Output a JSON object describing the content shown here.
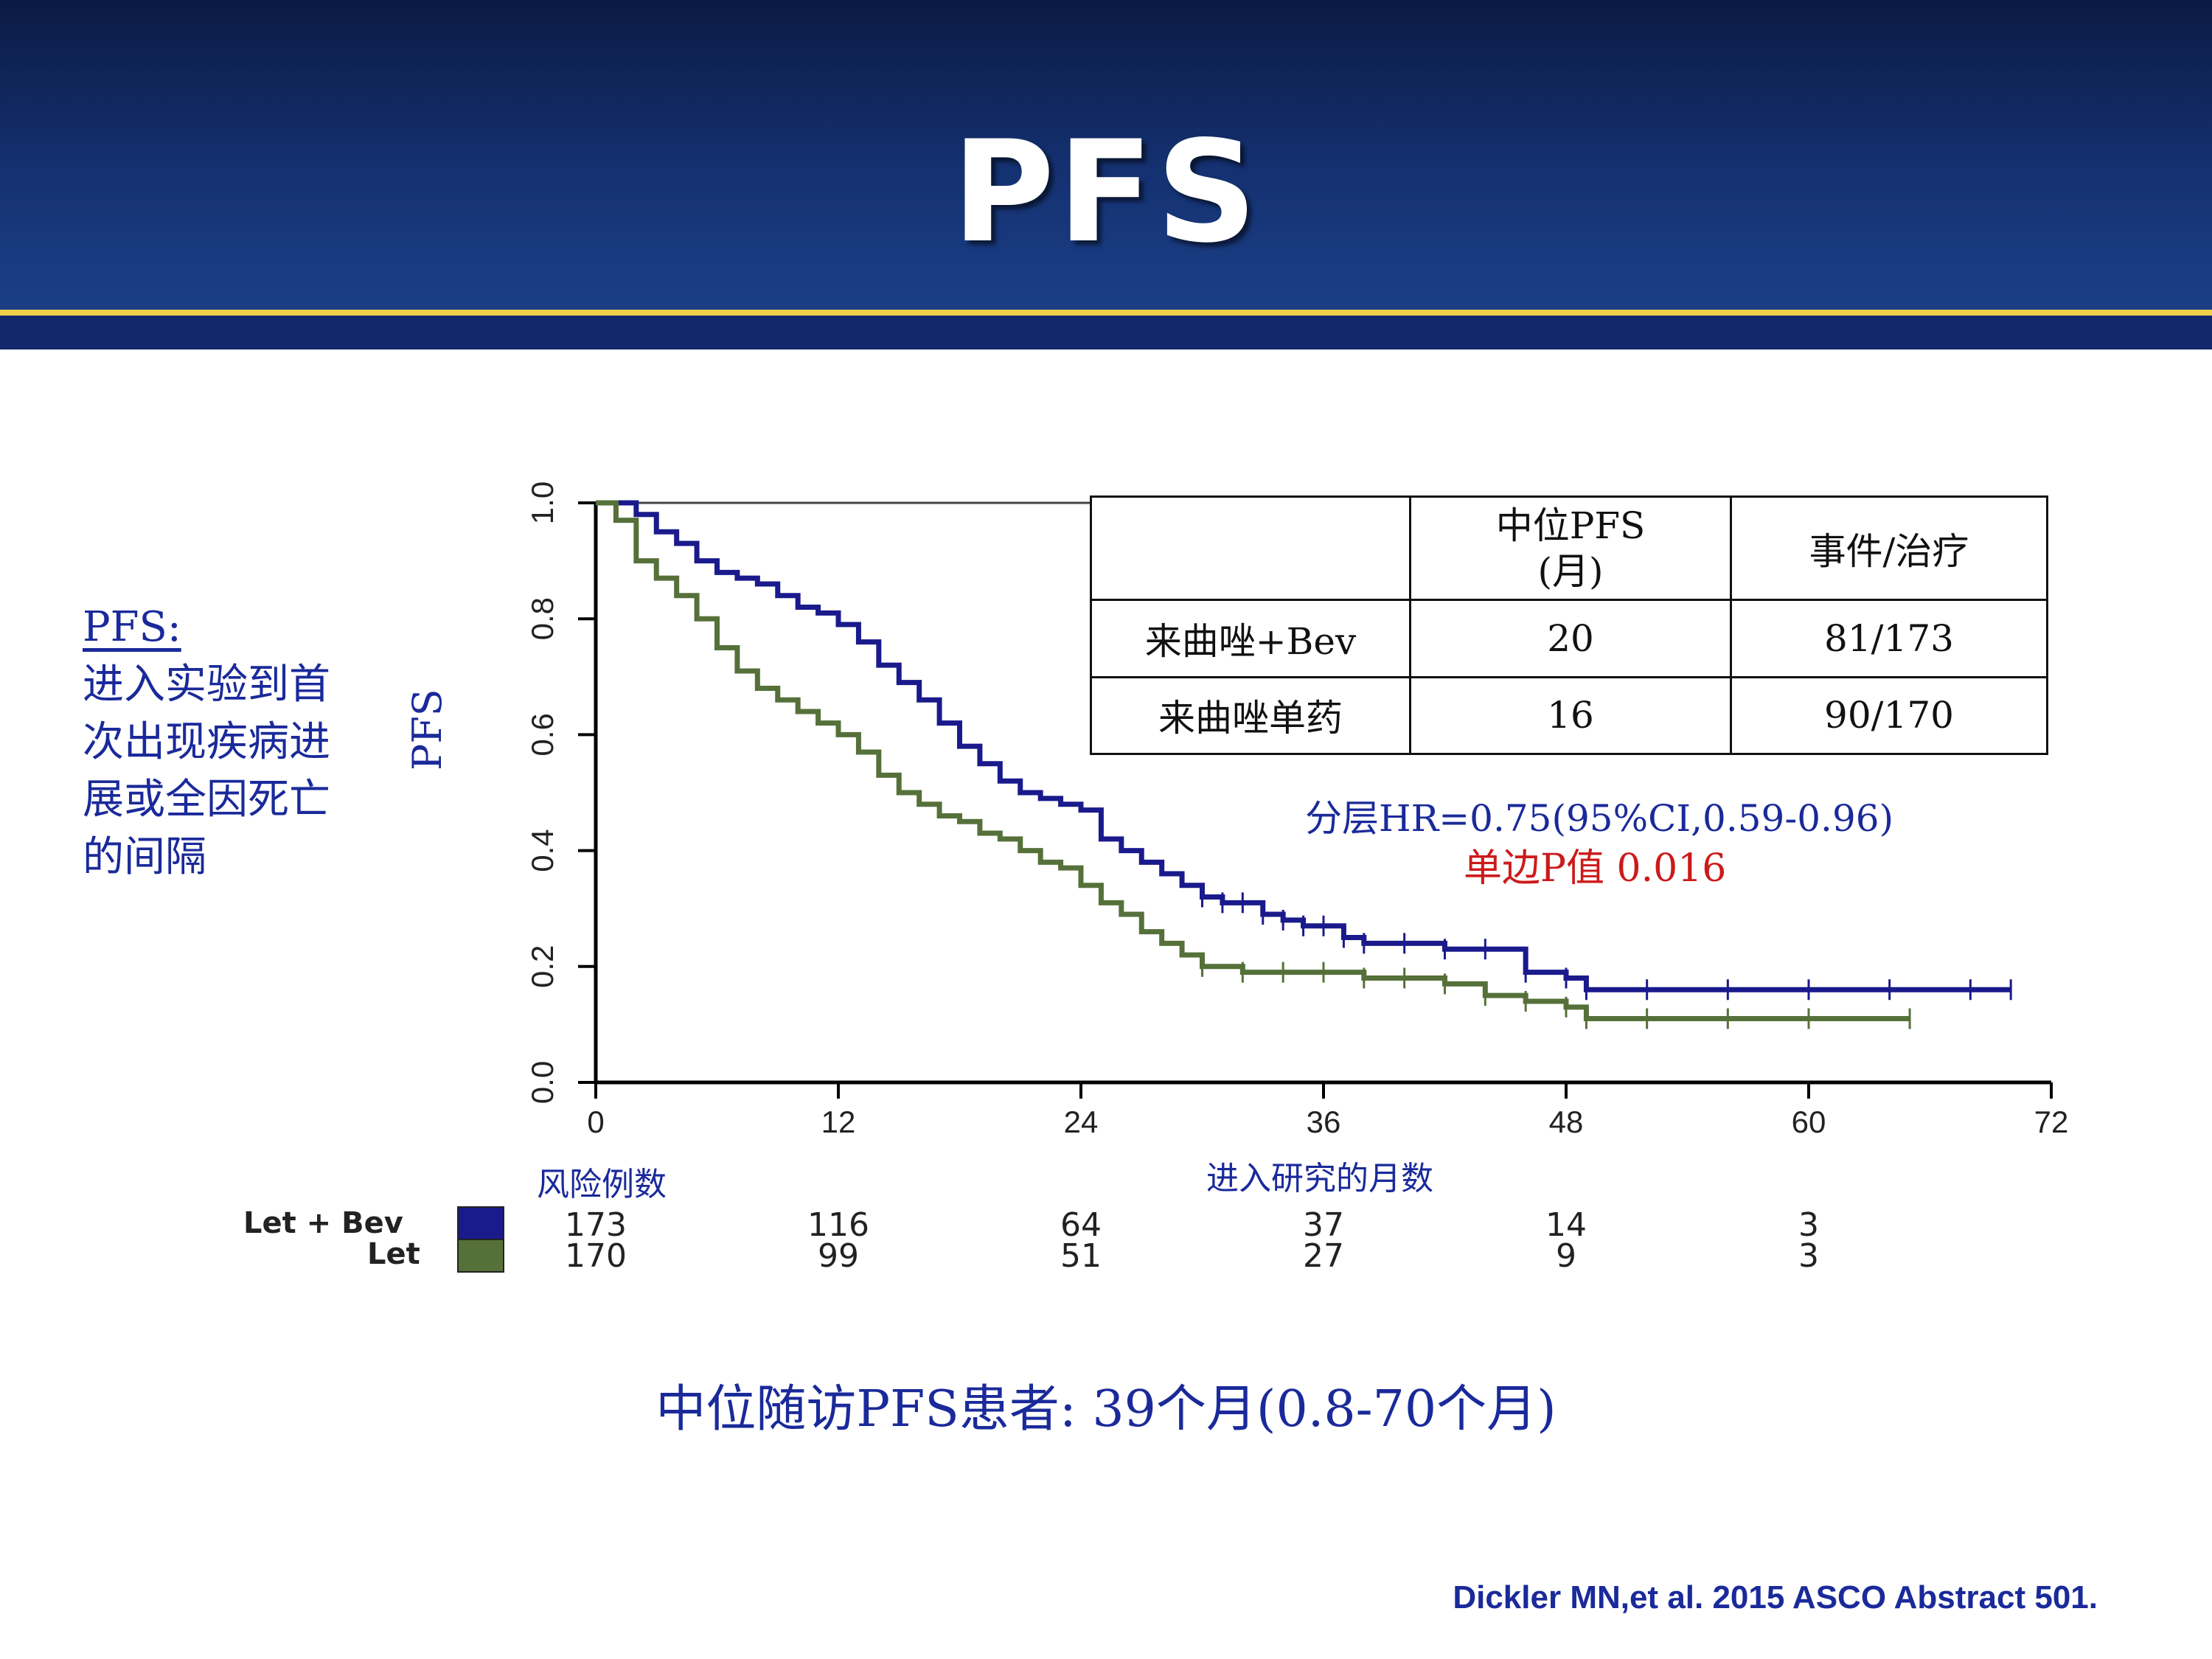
{
  "slide": {
    "title": "PFS",
    "sidebar_head": "PFS:",
    "sidebar_lines": [
      "进入实验到首",
      "次出现疾病进",
      "展或全因死亡",
      "的间隔"
    ],
    "median_followup": "中位随访PFS患者: 39个月(0.8-70个月)",
    "citation": "Dickler MN,et al. 2015 ASCO Abstract 501.",
    "colors": {
      "header": "#143171",
      "accent_line": "#f2d04a",
      "text_blue": "#1a2a9a",
      "p_red": "#cc1a1a"
    }
  },
  "chart_data": {
    "type": "line",
    "subtype": "kaplan-meier",
    "ylabel": "PFS",
    "xlabel": "进入研究的月数",
    "xlim": [
      0,
      72
    ],
    "ylim": [
      0,
      1.0
    ],
    "xticks": [
      0,
      12,
      24,
      36,
      48,
      60,
      72
    ],
    "yticks": [
      0.0,
      0.2,
      0.4,
      0.6,
      0.8,
      1.0
    ],
    "ytick_labels": [
      "0.0",
      "0.2",
      "0.4",
      "0.6",
      "0.8",
      "1.0"
    ],
    "series": [
      {
        "name": "Let + Bev",
        "color": "#1a1a8c",
        "x": [
          0,
          2,
          3,
          4,
          5,
          6,
          7,
          8,
          9,
          10,
          11,
          12,
          13,
          14,
          15,
          16,
          17,
          18,
          19,
          20,
          21,
          22,
          23,
          24,
          25,
          26,
          27,
          28,
          29,
          30,
          31,
          32,
          33,
          34,
          35,
          36,
          37,
          38,
          40,
          42,
          44,
          46,
          48,
          49,
          52,
          56,
          60,
          64,
          68,
          70
        ],
        "y": [
          1.0,
          0.98,
          0.95,
          0.93,
          0.9,
          0.88,
          0.87,
          0.86,
          0.84,
          0.82,
          0.81,
          0.79,
          0.76,
          0.72,
          0.69,
          0.66,
          0.62,
          0.58,
          0.55,
          0.52,
          0.5,
          0.49,
          0.48,
          0.47,
          0.42,
          0.4,
          0.38,
          0.36,
          0.34,
          0.32,
          0.31,
          0.31,
          0.29,
          0.28,
          0.27,
          0.27,
          0.25,
          0.24,
          0.24,
          0.23,
          0.23,
          0.19,
          0.18,
          0.16,
          0.16,
          0.16,
          0.16,
          0.16,
          0.16,
          0.16
        ]
      },
      {
        "name": "Let",
        "color": "#56703a",
        "x": [
          0,
          1,
          2,
          3,
          4,
          5,
          6,
          7,
          8,
          9,
          10,
          11,
          12,
          13,
          14,
          15,
          16,
          17,
          18,
          19,
          20,
          21,
          22,
          23,
          24,
          25,
          26,
          27,
          28,
          29,
          30,
          32,
          34,
          36,
          38,
          40,
          42,
          44,
          46,
          48,
          49,
          52,
          56,
          60,
          65
        ],
        "y": [
          1.0,
          0.97,
          0.9,
          0.87,
          0.84,
          0.8,
          0.75,
          0.71,
          0.68,
          0.66,
          0.64,
          0.62,
          0.6,
          0.57,
          0.53,
          0.5,
          0.48,
          0.46,
          0.45,
          0.43,
          0.42,
          0.4,
          0.38,
          0.37,
          0.34,
          0.31,
          0.29,
          0.26,
          0.24,
          0.22,
          0.2,
          0.19,
          0.19,
          0.19,
          0.18,
          0.18,
          0.17,
          0.15,
          0.14,
          0.13,
          0.11,
          0.11,
          0.11,
          0.11,
          0.11
        ]
      }
    ],
    "summary_table": {
      "header": [
        "",
        "中位PFS\n(月)",
        "事件/治疗"
      ],
      "header_median_line1": "中位PFS",
      "header_median_line2": "(月)",
      "rows": [
        {
          "group": "来曲唑+Bev",
          "median": "20",
          "events": "81/173"
        },
        {
          "group": "来曲唑单药",
          "median": "16",
          "events": "90/170"
        }
      ]
    },
    "hr_text": "分层HR=0.75(95%CI,0.59-0.96)",
    "p_text": "单边P值 0.016",
    "risk_table": {
      "title": "风险例数",
      "times": [
        0,
        12,
        24,
        36,
        48,
        60
      ],
      "rows": [
        {
          "label": "Let + Bev",
          "color": "#1a1a8c",
          "values": [
            "173",
            "116",
            "64",
            "37",
            "14",
            "3"
          ]
        },
        {
          "label": "Let",
          "color": "#56703a",
          "values": [
            "170",
            "99",
            "51",
            "27",
            "9",
            "3"
          ]
        }
      ]
    }
  }
}
